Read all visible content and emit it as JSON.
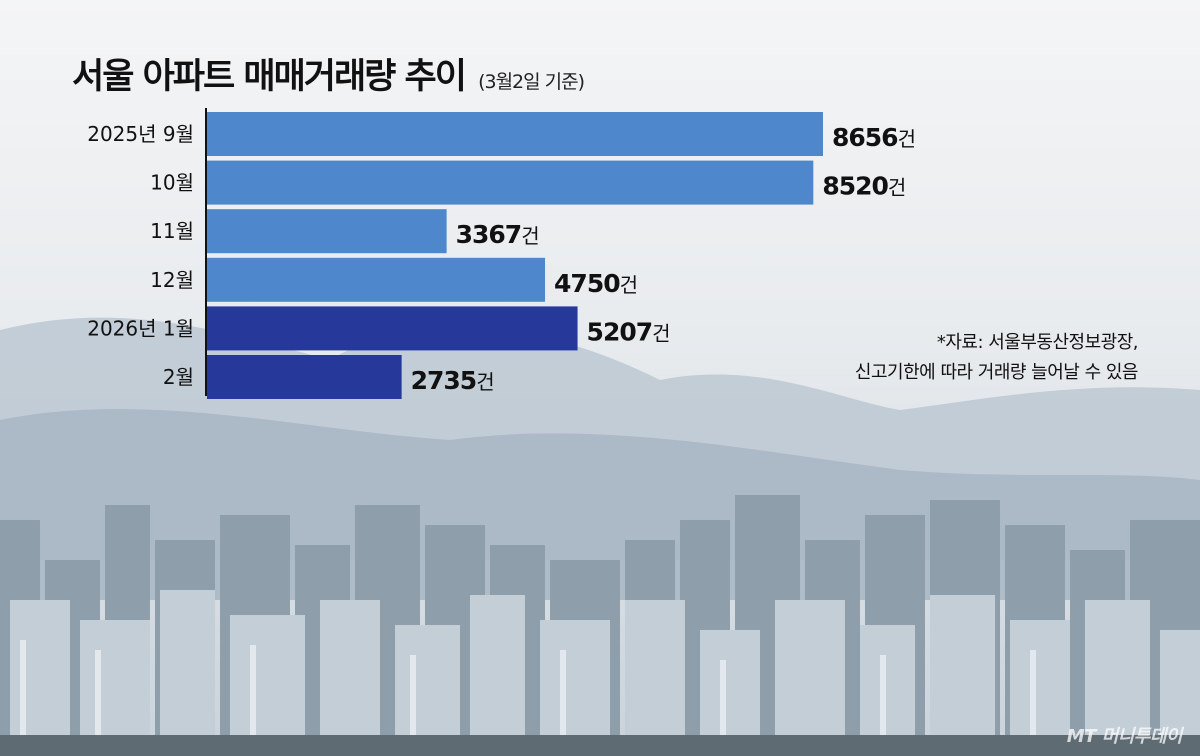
{
  "chart_data": {
    "type": "bar",
    "orientation": "horizontal",
    "title": "서울 아파트 매매거래량 추이",
    "subtitle": "(3월2일 기준)",
    "categories": [
      "2025년 9월",
      "10월",
      "11월",
      "12월",
      "2026년 1월",
      "2월"
    ],
    "values": [
      8656,
      8520,
      3367,
      4750,
      5207,
      2735
    ],
    "value_labels": [
      "8656",
      "8520",
      "3367",
      "4750",
      "5207",
      "2735"
    ],
    "unit": "건",
    "colors": [
      "#4f87cc",
      "#4f87cc",
      "#4f87cc",
      "#4f87cc",
      "#26399a",
      "#26399a"
    ],
    "xlim": [
      0,
      8656
    ]
  },
  "note": {
    "line1": "*자료: 서울부동산정보광장,",
    "line2": "신고기한에 따라 거래량 늘어날 수 있음"
  },
  "watermark": "MT 머니투데이"
}
